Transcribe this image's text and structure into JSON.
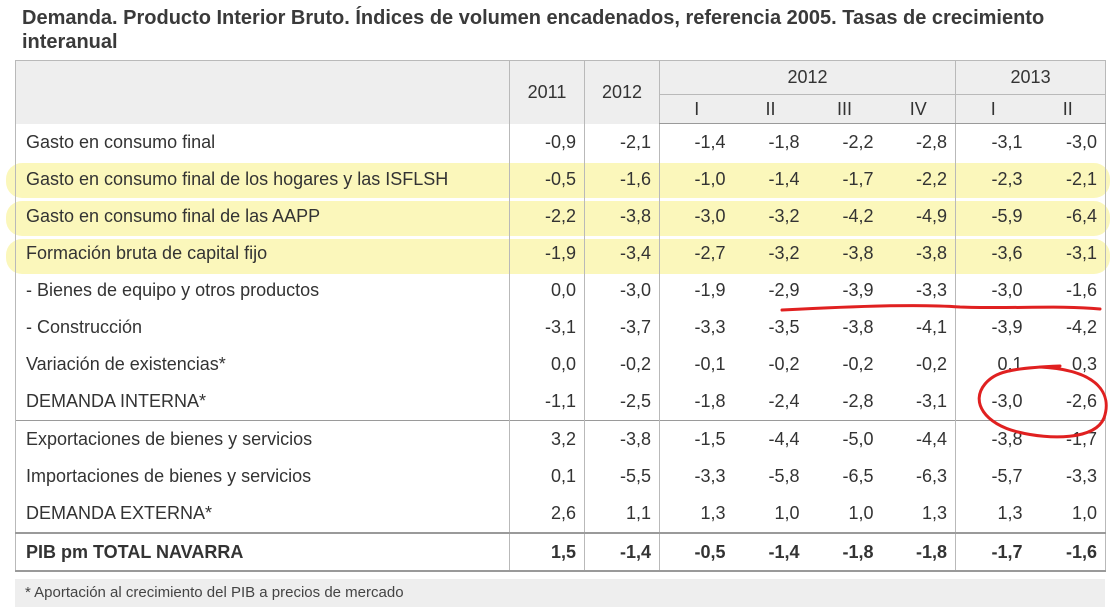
{
  "title": "Demanda.  Producto Interior Bruto.   Índices de volumen encadenados, referencia 2005.  Tasas de crecimiento interanual",
  "header": {
    "year_2011": "2011",
    "year_2012": "2012",
    "group_2012": "2012",
    "group_2013": "2013",
    "quarters": [
      "I",
      "II",
      "III",
      "IV",
      "I",
      "II"
    ]
  },
  "rows": [
    {
      "label": "Gasto en consumo final",
      "values": [
        "-0,9",
        "-2,1",
        "-1,4",
        "-1,8",
        "-2,2",
        "-2,8",
        "-3,1",
        "-3,0"
      ]
    },
    {
      "label": "Gasto en consumo final de los hogares y las ISFLSH",
      "values": [
        "-0,5",
        "-1,6",
        "-1,0",
        "-1,4",
        "-1,7",
        "-2,2",
        "-2,3",
        "-2,1"
      ]
    },
    {
      "label": "Gasto en consumo final de las AAPP",
      "values": [
        "-2,2",
        "-3,8",
        "-3,0",
        "-3,2",
        "-4,2",
        "-4,9",
        "-5,9",
        "-6,4"
      ]
    },
    {
      "label": "Formación bruta de capital fijo",
      "values": [
        "-1,9",
        "-3,4",
        "-2,7",
        "-3,2",
        "-3,8",
        "-3,8",
        "-3,6",
        "-3,1"
      ]
    },
    {
      "label": "- Bienes de equipo y otros productos",
      "values": [
        "0,0",
        "-3,0",
        "-1,9",
        "-2,9",
        "-3,9",
        "-3,3",
        "-3,0",
        "-1,6"
      ]
    },
    {
      "label": "- Construcción",
      "values": [
        "-3,1",
        "-3,7",
        "-3,3",
        "-3,5",
        "-3,8",
        "-4,1",
        "-3,9",
        "-4,2"
      ]
    },
    {
      "label": "Variación de existencias*",
      "values": [
        "0,0",
        "-0,2",
        "-0,1",
        "-0,2",
        "-0,2",
        "-0,2",
        "0,1",
        "0,3"
      ]
    },
    {
      "label": "DEMANDA INTERNA*",
      "values": [
        "-1,1",
        "-2,5",
        "-1,8",
        "-2,4",
        "-2,8",
        "-3,1",
        "-3,0",
        "-2,6"
      ]
    },
    {
      "label": "Exportaciones de bienes y servicios",
      "values": [
        "3,2",
        "-3,8",
        "-1,5",
        "-4,4",
        "-5,0",
        "-4,4",
        "-3,8",
        "-1,7"
      ]
    },
    {
      "label": "Importaciones de bienes y servicios",
      "values": [
        "0,1",
        "-5,5",
        "-3,3",
        "-5,8",
        "-6,5",
        "-6,3",
        "-5,7",
        "-3,3"
      ]
    },
    {
      "label": "DEMANDA EXTERNA*",
      "values": [
        "2,6",
        "1,1",
        "1,3",
        "1,0",
        "1,0",
        "1,3",
        "1,3",
        "1,0"
      ]
    }
  ],
  "total": {
    "label": "PIB pm TOTAL NAVARRA",
    "values": [
      "1,5",
      "-1,4",
      "-0,5",
      "-1,4",
      "-1,8",
      "-1,8",
      "-1,7",
      "-1,6"
    ]
  },
  "footnote": "* Aportación al crecimiento del PIB a precios de mercado",
  "colors": {
    "highlight": "#fbf6b4",
    "annotation": "#e02020",
    "header_bg": "#eeeeee"
  }
}
